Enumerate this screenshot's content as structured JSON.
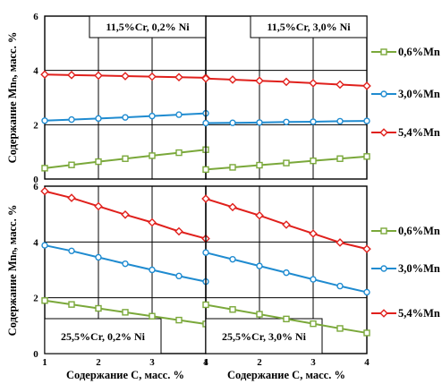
{
  "chart_data": {
    "type": "line",
    "ylabel": "Содержание Mnₙ, масс. %",
    "xlabel": "Содержание С, масс. %",
    "xlim": [
      1,
      4
    ],
    "ylim": [
      0,
      6
    ],
    "xticks": [
      "1",
      "2",
      "3",
      "4"
    ],
    "yticks": [
      "0",
      "2",
      "4",
      "6"
    ],
    "grid": true,
    "colors": {
      "0,6%Mn": "#7aa83a",
      "3,0%Mn": "#1f8bd0",
      "5,4%Mn": "#e0201c"
    },
    "legends": [
      [
        "0,6%Mn",
        "3,0%Mn",
        "5,4%Mn"
      ],
      [
        "0,6%Mn",
        "3,0%Mn",
        "5,4%Mn"
      ]
    ],
    "panels": [
      {
        "label": "11,5%Cr, 0,2% Ni",
        "x": [
          1,
          1.5,
          2,
          2.5,
          3,
          3.5,
          4
        ],
        "series": [
          {
            "name": "0,6%Mn",
            "values": [
              0.4,
              0.52,
              0.64,
              0.75,
              0.86,
              0.97,
              1.08
            ]
          },
          {
            "name": "3,0%Mn",
            "values": [
              2.15,
              2.19,
              2.23,
              2.27,
              2.32,
              2.37,
              2.42
            ]
          },
          {
            "name": "5,4%Mn",
            "values": [
              3.85,
              3.83,
              3.81,
              3.79,
              3.77,
              3.75,
              3.73
            ]
          }
        ]
      },
      {
        "label": "11,5%Cr, 3,0% Ni",
        "x": [
          1,
          1.5,
          2,
          2.5,
          3,
          3.5,
          4
        ],
        "series": [
          {
            "name": "0,6%Mn",
            "values": [
              0.35,
              0.43,
              0.51,
              0.59,
              0.67,
              0.75,
              0.83
            ]
          },
          {
            "name": "3,0%Mn",
            "values": [
              2.06,
              2.07,
              2.08,
              2.1,
              2.11,
              2.13,
              2.14
            ]
          },
          {
            "name": "5,4%Mn",
            "values": [
              3.7,
              3.66,
              3.62,
              3.58,
              3.53,
              3.48,
              3.43
            ]
          }
        ]
      },
      {
        "label": "25,5%Cr, 0,2% Ni",
        "x": [
          1,
          1.5,
          2,
          2.5,
          3,
          3.5,
          4
        ],
        "series": [
          {
            "name": "0,6%Mn",
            "values": [
              1.9,
              1.76,
              1.62,
              1.48,
              1.34,
              1.2,
              1.06
            ]
          },
          {
            "name": "3,0%Mn",
            "values": [
              3.88,
              3.68,
              3.45,
              3.22,
              3.0,
              2.78,
              2.58
            ]
          },
          {
            "name": "5,4%Mn",
            "values": [
              5.82,
              5.58,
              5.28,
              4.98,
              4.7,
              4.38,
              4.12
            ]
          }
        ]
      },
      {
        "label": "25,5%Cr, 3,0% Ni",
        "x": [
          1,
          1.5,
          2,
          2.5,
          3,
          3.5,
          4
        ],
        "series": [
          {
            "name": "0,6%Mn",
            "values": [
              1.75,
              1.58,
              1.41,
              1.24,
              1.07,
              0.9,
              0.74
            ]
          },
          {
            "name": "3,0%Mn",
            "values": [
              3.62,
              3.38,
              3.14,
              2.9,
              2.66,
              2.42,
              2.2
            ]
          },
          {
            "name": "5,4%Mn",
            "values": [
              5.55,
              5.25,
              4.95,
              4.62,
              4.3,
              3.98,
              3.75
            ]
          }
        ]
      }
    ]
  }
}
